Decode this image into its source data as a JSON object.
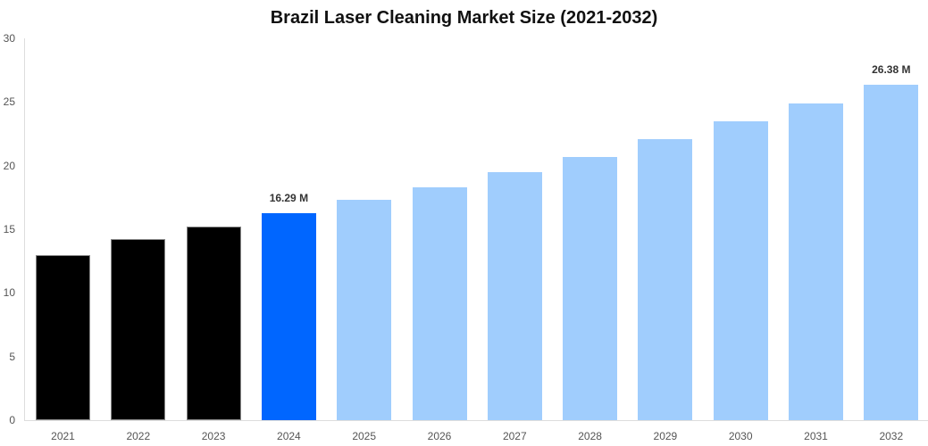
{
  "chart_data": {
    "type": "bar",
    "title": "Brazil Laser Cleaning Market Size (2021-2032)",
    "xlabel": "",
    "ylabel": "",
    "ylim": [
      0,
      30
    ],
    "yticks": [
      0,
      5,
      10,
      15,
      20,
      25,
      30
    ],
    "grid": false,
    "categories": [
      "2021",
      "2022",
      "2023",
      "2024",
      "2025",
      "2026",
      "2027",
      "2028",
      "2029",
      "2030",
      "2031",
      "2032"
    ],
    "values": [
      12.96,
      14.23,
      15.21,
      16.29,
      17.3,
      18.3,
      19.5,
      20.7,
      22.1,
      23.5,
      24.9,
      26.38
    ],
    "colors": [
      "#000000",
      "#000000",
      "#000000",
      "#0066ff",
      "#a0cdfd",
      "#a0cdfd",
      "#a0cdfd",
      "#a0cdfd",
      "#a0cdfd",
      "#a0cdfd",
      "#a0cdfd",
      "#a0cdfd"
    ],
    "data_labels": {
      "3": "16.29 M",
      "11": "26.38 M"
    },
    "legend": null
  }
}
